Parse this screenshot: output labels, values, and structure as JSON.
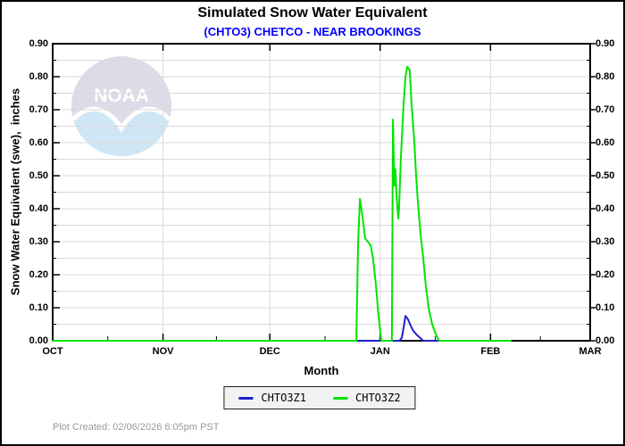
{
  "watermark": {
    "text": "NOAA"
  },
  "footer": {
    "created_text": "Plot Created: 02/06/2026 6:05pm PST"
  },
  "legend": {
    "items": [
      {
        "label": "CHTO3Z1",
        "color": "#1f1fcc"
      },
      {
        "label": "CHTO3Z2",
        "color": "#00e400"
      }
    ]
  },
  "chart_data": {
    "type": "line",
    "title": "Simulated Snow Water Equivalent",
    "subtitle": "(CHTO3) CHETCO - NEAR BROOKINGS",
    "subtitle_color": "#0000ff",
    "xlabel": "Month",
    "ylabel": "Snow Water Equivalent (swe),  inches",
    "x_unit": "days since Oct 1",
    "xlim": [
      0,
      151
    ],
    "ylim": [
      0,
      0.9
    ],
    "grid": true,
    "grid_color": "#d9d9d9",
    "x_ticks": {
      "days": [
        0,
        31,
        61,
        92,
        123,
        151
      ],
      "labels": [
        "OCT",
        "NOV",
        "DEC",
        "JAN",
        "FEB",
        "MAR"
      ],
      "minor_days": [
        15.5,
        46,
        76.5,
        107.5,
        137
      ]
    },
    "y_ticks": {
      "values": [
        0,
        0.1,
        0.2,
        0.3,
        0.4,
        0.5,
        0.6,
        0.7,
        0.8,
        0.9
      ],
      "labels": [
        "0.00",
        "0.10",
        "0.20",
        "0.30",
        "0.40",
        "0.50",
        "0.60",
        "0.70",
        "0.80",
        "0.90"
      ],
      "minor_step": 0.05
    },
    "legend_position": "bottom-center",
    "series": [
      {
        "name": "CHTO3Z1",
        "color": "#1f1fcc",
        "points": [
          [
            0,
            0
          ],
          [
            97.5,
            0
          ],
          [
            98.1,
            0.01
          ],
          [
            98.6,
            0.04
          ],
          [
            99.1,
            0.075
          ],
          [
            99.8,
            0.065
          ],
          [
            100.6,
            0.045
          ],
          [
            101.3,
            0.03
          ],
          [
            102.1,
            0.02
          ],
          [
            103.1,
            0.01
          ],
          [
            104.1,
            0
          ],
          [
            128.7,
            0
          ]
        ]
      },
      {
        "name": "CHTO3Z2",
        "color": "#00e400",
        "points": [
          [
            0,
            0
          ],
          [
            85.3,
            0
          ],
          [
            85.8,
            0.3
          ],
          [
            86.3,
            0.43
          ],
          [
            87,
            0.38
          ],
          [
            87.8,
            0.31
          ],
          [
            89.3,
            0.29
          ],
          [
            90,
            0.25
          ],
          [
            90.8,
            0.17
          ],
          [
            91.5,
            0.08
          ],
          [
            92.3,
            0
          ],
          [
            95.3,
            0
          ],
          [
            95.6,
            0.67
          ],
          [
            96,
            0.47
          ],
          [
            96.3,
            0.52
          ],
          [
            96.6,
            0.44
          ],
          [
            97.1,
            0.37
          ],
          [
            97.3,
            0.4
          ],
          [
            97.8,
            0.55
          ],
          [
            98.6,
            0.72
          ],
          [
            99.1,
            0.8
          ],
          [
            99.6,
            0.83
          ],
          [
            100.3,
            0.82
          ],
          [
            100.8,
            0.72
          ],
          [
            101.6,
            0.6
          ],
          [
            102.1,
            0.5
          ],
          [
            102.6,
            0.42
          ],
          [
            103.3,
            0.33
          ],
          [
            104.1,
            0.25
          ],
          [
            104.8,
            0.17
          ],
          [
            105.6,
            0.1
          ],
          [
            106.6,
            0.05
          ],
          [
            107.6,
            0.02
          ],
          [
            108.6,
            0
          ],
          [
            128.7,
            0
          ]
        ]
      }
    ]
  }
}
